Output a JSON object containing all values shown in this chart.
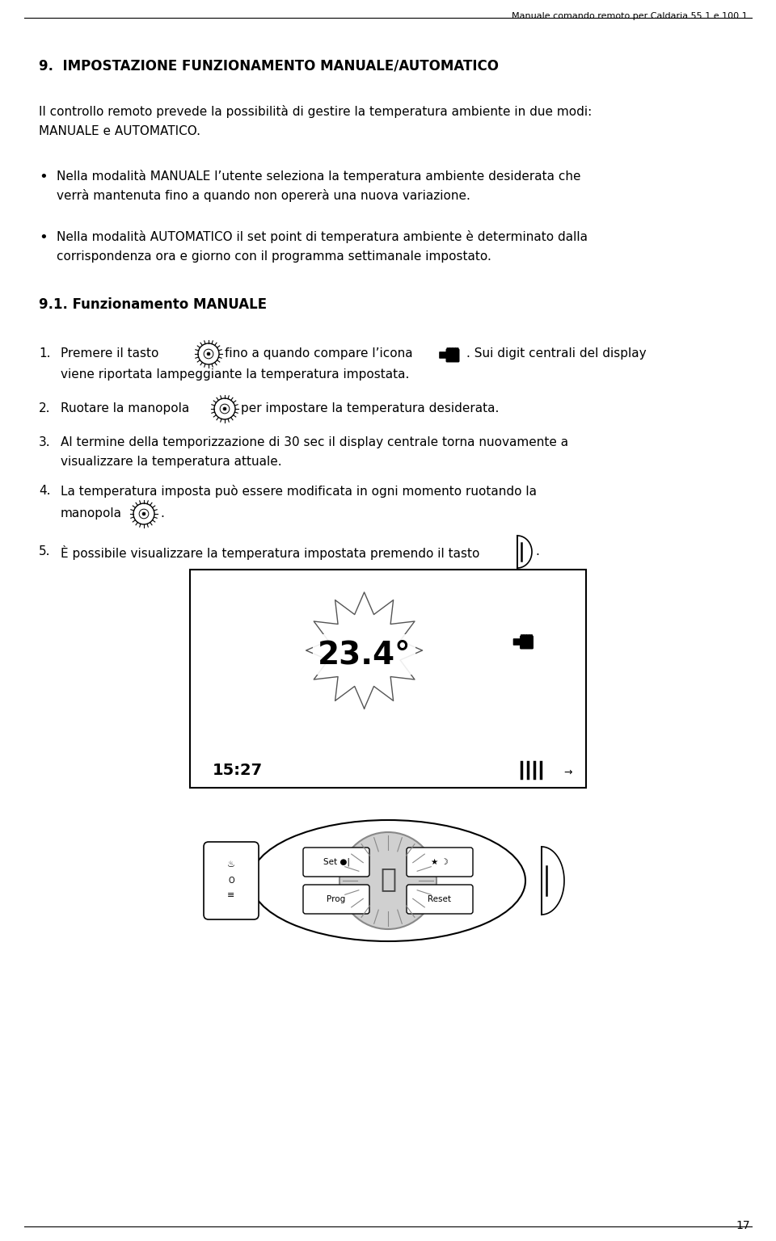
{
  "bg_color": "#ffffff",
  "page_number": "17",
  "header_text": "Manuale comando remoto per Caldaria 55.1 e 100.1",
  "section_title": "9.  IMPOSTAZIONE FUNZIONAMENTO MANUALE/AUTOMATICO",
  "intro_line1": "Il controllo remoto prevede la possibilità di gestire la temperatura ambiente in due modi:",
  "intro_line2": "MANUALE e AUTOMATICO.",
  "bullet1_line1": "Nella modalità MANUALE l’utente seleziona la temperatura ambiente desiderata che",
  "bullet1_line2": "verrà mantenuta fino a quando non opererà una nuova variazione.",
  "bullet2_line1": "Nella modalità AUTOMATICO il set point di temperatura ambiente è determinato dalla",
  "bullet2_line2": "corrispondenza ora e giorno con il programma settimanale impostato.",
  "subsection": "9.1. Funzionamento MANUALE",
  "i1a": "Premere il tasto",
  "i1b": "fino a quando compare l’icona",
  "i1c": ". Sui digit centrali del display",
  "i1d": "viene riportata lampeggiante la temperatura impostata.",
  "i2a": "Ruotare la manopola",
  "i2b": "per impostare la temperatura desiderata.",
  "i3a": "Al termine della temporizzazione di 30 sec il display centrale torna nuovamente a",
  "i3b": "visualizzare la temperatura attuale.",
  "i4a": "La temperatura imposta può essere modificata in ogni momento ruotando la",
  "i4b": "manopola",
  "i4c": ".",
  "i5a": "È possibile visualizzare la temperatura impostata premendo il tasto",
  "i5b": ".",
  "display_time": "15:27",
  "display_temp": "23.4°"
}
